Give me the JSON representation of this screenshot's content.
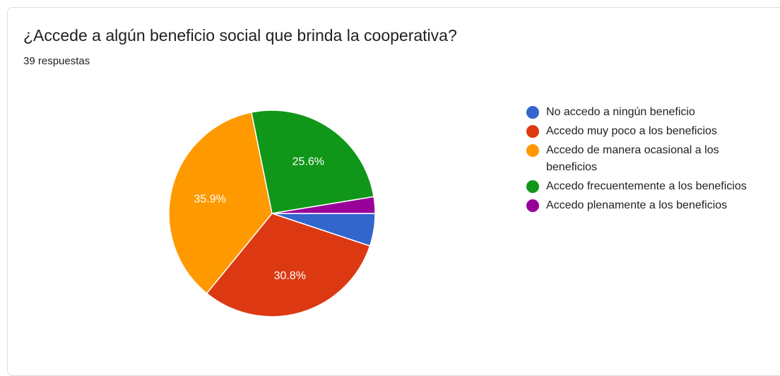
{
  "question": {
    "title": "¿Accede a algún beneficio social que brinda la cooperativa?",
    "responses": "39 respuestas"
  },
  "chart_data": {
    "type": "pie",
    "title": "¿Accede a algún beneficio social que brinda la cooperativa?",
    "total_responses": 39,
    "categories": [
      "No accedo a ningún beneficio",
      "Accedo muy poco a los beneficios",
      "Accedo de manera ocasional a los beneficios",
      "Accedo frecuentemente a los beneficios",
      "Accedo plenamente a los beneficios"
    ],
    "values": [
      5.1,
      30.8,
      35.9,
      25.6,
      2.6
    ],
    "labels": [
      "",
      "30.8%",
      "35.9%",
      "25.6%",
      ""
    ],
    "colors": [
      "#3366cc",
      "#dc3912",
      "#ff9900",
      "#109618",
      "#990099"
    ],
    "legend_position": "right"
  }
}
